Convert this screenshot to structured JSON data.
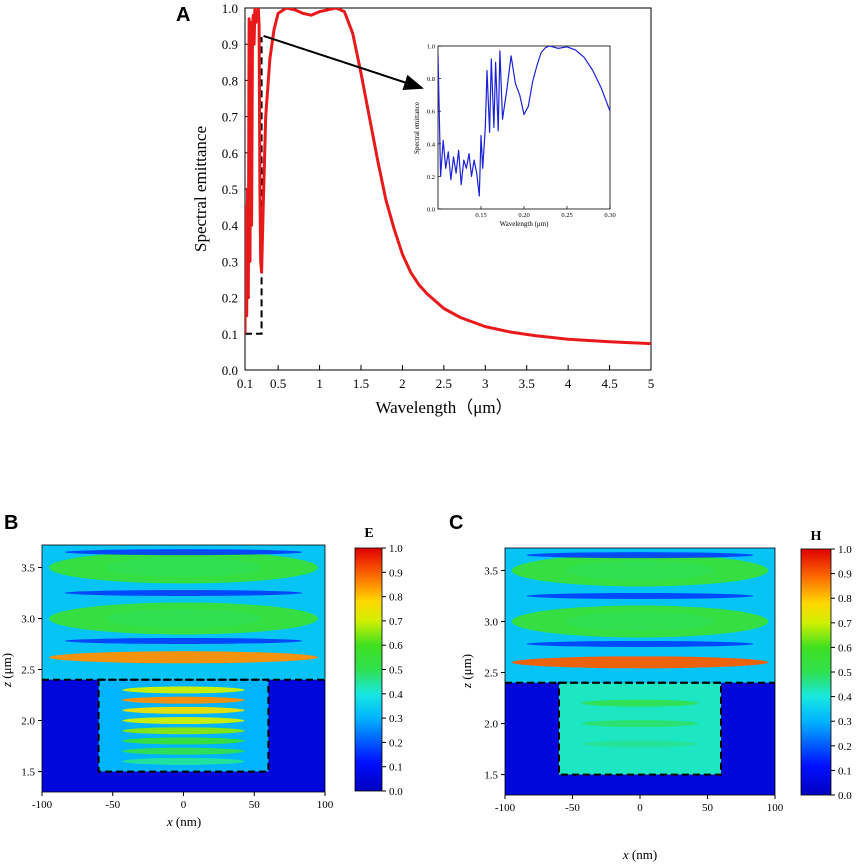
{
  "colors": {
    "curve": "#e8191b",
    "inset_curve": "#1a22d8",
    "axis": "#000000",
    "arrow": "#000000",
    "dashed_box": "#000000",
    "background_field": "#0010f0"
  },
  "chart_data": [
    {
      "id": "A",
      "panel_label": "A",
      "type": "line",
      "title": "",
      "xlabel": "Wavelength（μm）",
      "ylabel": "Spectral emittance",
      "xlim": [
        0.1,
        5
      ],
      "ylim": [
        0.0,
        1.0
      ],
      "xticks": [
        0.1,
        0.5,
        1,
        1.5,
        2,
        2.5,
        3,
        3.5,
        4,
        4.5,
        5
      ],
      "xtick_labels": [
        "0.1",
        "0.5",
        "1",
        "1.5",
        "2",
        "2.5",
        "3",
        "3.5",
        "4",
        "4.5",
        "5"
      ],
      "yticks": [
        0.0,
        0.1,
        0.2,
        0.3,
        0.4,
        0.5,
        0.6,
        0.7,
        0.8,
        0.9,
        1.0
      ],
      "ytick_labels": [
        "0.0",
        "0.1",
        "0.2",
        "0.3",
        "0.4",
        "0.5",
        "0.6",
        "0.7",
        "0.8",
        "0.9",
        "1.0"
      ],
      "series": [
        {
          "name": "emittance",
          "x": [
            0.1,
            0.11,
            0.12,
            0.13,
            0.14,
            0.15,
            0.16,
            0.17,
            0.18,
            0.19,
            0.2,
            0.21,
            0.22,
            0.23,
            0.24,
            0.25,
            0.26,
            0.27,
            0.28,
            0.29,
            0.3,
            0.32,
            0.35,
            0.4,
            0.45,
            0.5,
            0.6,
            0.7,
            0.8,
            0.9,
            1.0,
            1.1,
            1.2,
            1.3,
            1.4,
            1.5,
            1.6,
            1.7,
            1.8,
            1.9,
            2.0,
            2.1,
            2.2,
            2.3,
            2.4,
            2.5,
            2.7,
            3.0,
            3.3,
            3.6,
            4.0,
            4.5,
            5.0
          ],
          "y": [
            0.1,
            0.45,
            0.15,
            0.5,
            0.2,
            0.97,
            0.3,
            0.96,
            0.4,
            0.95,
            0.98,
            0.9,
            1.0,
            0.96,
            0.99,
            0.97,
            1.0,
            0.95,
            0.5,
            0.3,
            0.27,
            0.45,
            0.7,
            0.86,
            0.94,
            0.985,
            1.0,
            0.995,
            0.985,
            0.98,
            0.99,
            0.995,
            1.0,
            0.99,
            0.93,
            0.82,
            0.7,
            0.58,
            0.47,
            0.39,
            0.32,
            0.27,
            0.235,
            0.21,
            0.19,
            0.17,
            0.145,
            0.12,
            0.105,
            0.095,
            0.085,
            0.078,
            0.073
          ]
        }
      ],
      "zoom_box": {
        "x": [
          0.1,
          0.3
        ],
        "y": [
          0.1,
          0.92
        ]
      }
    },
    {
      "id": "A-inset",
      "type": "line",
      "title": "",
      "xlabel": "Wavelength (μm)",
      "ylabel": "Spectral emittance",
      "xlim": [
        0.1,
        0.3
      ],
      "ylim": [
        0.0,
        1.0
      ],
      "xticks": [
        0.15,
        0.2,
        0.25,
        0.3
      ],
      "xtick_labels": [
        "0.15",
        "0.20",
        "0.25",
        "0.30"
      ],
      "yticks": [
        0.0,
        0.2,
        0.4,
        0.6,
        0.8,
        1.0
      ],
      "ytick_labels": [
        "0.0",
        "0.2",
        "0.4",
        "0.6",
        "0.8",
        "1.0"
      ],
      "series": [
        {
          "name": "emittance-zoom",
          "x": [
            0.1,
            0.103,
            0.106,
            0.109,
            0.112,
            0.115,
            0.118,
            0.121,
            0.124,
            0.127,
            0.13,
            0.133,
            0.136,
            0.139,
            0.142,
            0.145,
            0.148,
            0.15,
            0.152,
            0.155,
            0.157,
            0.16,
            0.162,
            0.165,
            0.167,
            0.17,
            0.172,
            0.175,
            0.18,
            0.185,
            0.19,
            0.195,
            0.2,
            0.205,
            0.21,
            0.215,
            0.22,
            0.225,
            0.23,
            0.24,
            0.25,
            0.26,
            0.27,
            0.28,
            0.29,
            0.3
          ],
          "y": [
            0.95,
            0.2,
            0.42,
            0.25,
            0.35,
            0.18,
            0.32,
            0.22,
            0.36,
            0.15,
            0.3,
            0.25,
            0.34,
            0.2,
            0.3,
            0.22,
            0.08,
            0.45,
            0.25,
            0.5,
            0.85,
            0.47,
            0.92,
            0.5,
            0.9,
            0.48,
            0.97,
            0.55,
            0.73,
            0.94,
            0.77,
            0.7,
            0.58,
            0.63,
            0.78,
            0.88,
            0.96,
            0.99,
            1.0,
            0.985,
            0.995,
            0.975,
            0.93,
            0.85,
            0.74,
            0.6
          ]
        }
      ]
    },
    {
      "id": "B",
      "panel_label": "B",
      "type": "heatmap",
      "title": "",
      "colorbar_title": "E",
      "xlabel_var": "x",
      "xlabel_unit": " (nm)",
      "ylabel_var": "z",
      "ylabel_unit": " (μm)",
      "xlim": [
        -100,
        100
      ],
      "ylim": [
        1.3,
        3.72
      ],
      "xticks": [
        -100,
        -50,
        0,
        50,
        100
      ],
      "xtick_labels": [
        "-100",
        "-50",
        "0",
        "50",
        "100"
      ],
      "yticks": [
        1.5,
        2.0,
        2.5,
        3.0,
        3.5
      ],
      "ytick_labels": [
        "1.5",
        "2.0",
        "2.5",
        "3.0",
        "3.5"
      ],
      "colorbar_ticks": [
        "0.0",
        "0.1",
        "0.2",
        "0.3",
        "0.4",
        "0.5",
        "0.6",
        "0.7",
        "0.8",
        "0.9",
        "1.0"
      ],
      "structure_box": {
        "x": [
          -60,
          60
        ],
        "z": [
          1.5,
          2.4
        ]
      },
      "bands": [
        {
          "z": 3.5,
          "x_range": [
            -100,
            100
          ],
          "value": 0.55
        },
        {
          "z": 3.0,
          "x_range": [
            -100,
            100
          ],
          "value": 0.55
        },
        {
          "z": 2.62,
          "x_range": [
            -100,
            100
          ],
          "value": 0.85
        },
        {
          "z": 2.3,
          "x_range": [
            -60,
            60
          ],
          "value": 0.7
        },
        {
          "z": 2.2,
          "x_range": [
            -60,
            60
          ],
          "value": 0.85
        },
        {
          "z": 2.1,
          "x_range": [
            -60,
            60
          ],
          "value": 0.75
        },
        {
          "z": 2.0,
          "x_range": [
            -60,
            60
          ],
          "value": 0.7
        },
        {
          "z": 1.9,
          "x_range": [
            -60,
            60
          ],
          "value": 0.65
        },
        {
          "z": 1.8,
          "x_range": [
            -60,
            60
          ],
          "value": 0.55
        },
        {
          "z": 1.7,
          "x_range": [
            -60,
            60
          ],
          "value": 0.5
        },
        {
          "z": 1.6,
          "x_range": [
            -60,
            60
          ],
          "value": 0.45
        }
      ]
    },
    {
      "id": "C",
      "panel_label": "C",
      "type": "heatmap",
      "title": "",
      "colorbar_title": "H",
      "xlabel_var": "x",
      "xlabel_unit": " (nm)",
      "ylabel_var": "z",
      "ylabel_unit": " (μm)",
      "xlim": [
        -100,
        100
      ],
      "ylim": [
        1.3,
        3.72
      ],
      "xticks": [
        -100,
        -50,
        0,
        50,
        100
      ],
      "xtick_labels": [
        "-100",
        "-50",
        "0",
        "50",
        "100"
      ],
      "yticks": [
        1.5,
        2.0,
        2.5,
        3.0,
        3.5
      ],
      "ytick_labels": [
        "1.5",
        "2.0",
        "2.5",
        "3.0",
        "3.5"
      ],
      "colorbar_ticks": [
        "0.0",
        "0.1",
        "0.2",
        "0.3",
        "0.4",
        "0.5",
        "0.6",
        "0.7",
        "0.8",
        "0.9",
        "1.0"
      ],
      "structure_box": {
        "x": [
          -60,
          60
        ],
        "z": [
          1.5,
          2.4
        ]
      },
      "bands": [
        {
          "z": 3.5,
          "x_range": [
            -100,
            100
          ],
          "value": 0.55
        },
        {
          "z": 3.0,
          "x_range": [
            -100,
            100
          ],
          "value": 0.55
        },
        {
          "z": 2.6,
          "x_range": [
            -100,
            100
          ],
          "value": 0.9
        },
        {
          "z": 2.2,
          "x_range": [
            -60,
            60
          ],
          "value": 0.5
        },
        {
          "z": 2.0,
          "x_range": [
            -60,
            60
          ],
          "value": 0.48
        },
        {
          "z": 1.8,
          "x_range": [
            -60,
            60
          ],
          "value": 0.45
        }
      ]
    }
  ]
}
